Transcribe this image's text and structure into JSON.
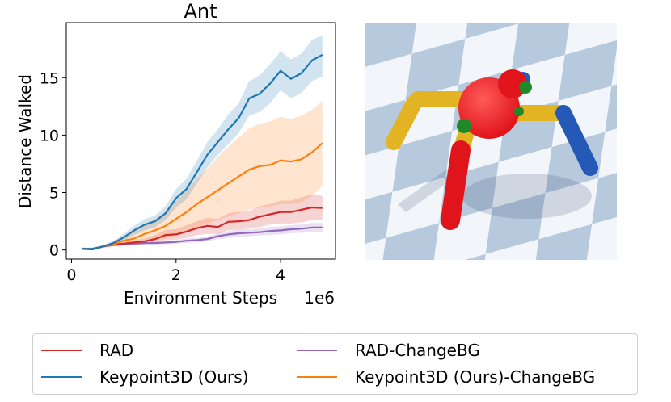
{
  "chart_data": {
    "type": "line",
    "title": "Ant",
    "xlabel": "Environment Steps",
    "ylabel": "Distance Walked",
    "x_multiplier": "1e6",
    "xlim": [
      -0.1,
      5.05
    ],
    "ylim": [
      -0.8,
      19.8
    ],
    "xticks": [
      0,
      2,
      4
    ],
    "yticks": [
      0,
      5,
      10,
      15
    ],
    "xtick_labels": [
      "0",
      "2",
      "4"
    ],
    "ytick_labels": [
      "0",
      "5",
      "10",
      "15"
    ],
    "grid": false,
    "legend_position": "bottom",
    "x": [
      0.2,
      0.4,
      0.6,
      0.8,
      1.0,
      1.2,
      1.4,
      1.6,
      1.8,
      2.0,
      2.2,
      2.4,
      2.6,
      2.8,
      3.0,
      3.2,
      3.4,
      3.6,
      3.8,
      4.0,
      4.2,
      4.4,
      4.6,
      4.8
    ],
    "series": [
      {
        "name": "RAD",
        "color": "#d62728",
        "values": [
          0.1,
          0.05,
          0.3,
          0.45,
          0.55,
          0.65,
          0.75,
          0.95,
          1.3,
          1.35,
          1.6,
          1.9,
          2.1,
          2.0,
          2.45,
          2.5,
          2.6,
          2.9,
          3.1,
          3.3,
          3.3,
          3.5,
          3.7,
          3.65
        ],
        "lower": [
          0.0,
          -0.05,
          0.2,
          0.3,
          0.4,
          0.45,
          0.5,
          0.6,
          0.85,
          0.9,
          1.05,
          1.3,
          1.4,
          1.4,
          1.7,
          1.75,
          1.85,
          2.0,
          2.2,
          2.3,
          2.3,
          2.4,
          2.6,
          2.6
        ],
        "upper": [
          0.2,
          0.15,
          0.4,
          0.6,
          0.7,
          0.85,
          1.0,
          1.3,
          1.75,
          1.8,
          2.15,
          2.5,
          2.8,
          2.7,
          3.2,
          3.3,
          3.4,
          3.8,
          4.0,
          4.3,
          4.3,
          4.6,
          4.8,
          4.7
        ]
      },
      {
        "name": "Keypoint3D (Ours)",
        "color": "#1f77b4",
        "values": [
          0.1,
          0.1,
          0.3,
          0.6,
          1.1,
          1.7,
          2.2,
          2.5,
          3.2,
          4.5,
          5.3,
          6.8,
          8.3,
          9.4,
          10.5,
          11.5,
          13.2,
          13.6,
          14.5,
          15.6,
          14.9,
          15.4,
          16.5,
          17.0
        ],
        "lower": [
          0.0,
          0.0,
          0.2,
          0.4,
          0.8,
          1.3,
          1.7,
          2.0,
          2.6,
          3.7,
          4.4,
          5.8,
          7.2,
          8.3,
          9.2,
          10.2,
          11.7,
          12.0,
          12.8,
          13.9,
          13.2,
          13.7,
          14.7,
          15.1
        ],
        "upper": [
          0.2,
          0.2,
          0.4,
          0.8,
          1.4,
          2.1,
          2.7,
          3.0,
          3.8,
          5.3,
          6.2,
          7.8,
          9.4,
          10.5,
          11.8,
          12.8,
          14.7,
          15.2,
          16.2,
          17.3,
          16.6,
          17.1,
          18.3,
          18.7
        ]
      },
      {
        "name": "RAD-ChangeBG",
        "color": "#9467bd",
        "values": [
          0.1,
          0.05,
          0.3,
          0.45,
          0.5,
          0.55,
          0.6,
          0.6,
          0.65,
          0.7,
          0.8,
          0.85,
          0.95,
          1.2,
          1.35,
          1.45,
          1.5,
          1.55,
          1.65,
          1.7,
          1.8,
          1.85,
          1.95,
          1.95
        ],
        "lower": [
          0.0,
          -0.05,
          0.2,
          0.35,
          0.4,
          0.45,
          0.5,
          0.5,
          0.5,
          0.55,
          0.6,
          0.65,
          0.75,
          0.95,
          1.05,
          1.15,
          1.2,
          1.25,
          1.3,
          1.35,
          1.45,
          1.5,
          1.55,
          1.55
        ],
        "upper": [
          0.2,
          0.15,
          0.4,
          0.55,
          0.6,
          0.65,
          0.7,
          0.7,
          0.8,
          0.85,
          1.0,
          1.05,
          1.15,
          1.45,
          1.65,
          1.75,
          1.8,
          1.85,
          2.0,
          2.05,
          2.15,
          2.2,
          2.35,
          2.35
        ]
      },
      {
        "name": "Keypoint3D (Ours)-ChangeBG",
        "color": "#ff7f0e",
        "values": [
          0.1,
          0.1,
          0.3,
          0.5,
          0.8,
          1.0,
          1.4,
          1.7,
          2.1,
          2.7,
          3.3,
          4.0,
          4.6,
          5.2,
          5.8,
          6.4,
          7.0,
          7.3,
          7.4,
          7.8,
          7.7,
          7.9,
          8.5,
          9.3
        ],
        "lower": [
          0.0,
          0.0,
          0.2,
          0.3,
          0.4,
          0.5,
          0.7,
          0.8,
          1.0,
          1.3,
          1.6,
          2.0,
          2.3,
          2.6,
          2.9,
          3.2,
          3.5,
          3.7,
          3.8,
          4.0,
          4.0,
          4.2,
          4.7,
          5.6
        ],
        "upper": [
          0.2,
          0.2,
          0.4,
          0.7,
          1.2,
          1.6,
          2.2,
          2.7,
          3.3,
          4.2,
          5.2,
          6.2,
          7.1,
          8.1,
          9.0,
          9.8,
          10.6,
          11.0,
          11.2,
          11.6,
          11.4,
          11.7,
          12.2,
          13.0
        ]
      }
    ]
  },
  "legend": {
    "items": [
      {
        "label": "RAD",
        "color": "#d62728"
      },
      {
        "label": "Keypoint3D (Ours)",
        "color": "#1f77b4"
      },
      {
        "label": "RAD-ChangeBG",
        "color": "#9467bd"
      },
      {
        "label": "Keypoint3D (Ours)-ChangeBG",
        "color": "#ff7f0e"
      }
    ]
  },
  "render_colors": {
    "floor_light": "#eef3f8",
    "floor_dark": "#9fb7d2",
    "body": "#e0141b",
    "joint": "#1f8a2a",
    "upper_leg": "#e2b423",
    "lower_leg": "#2459b8"
  }
}
